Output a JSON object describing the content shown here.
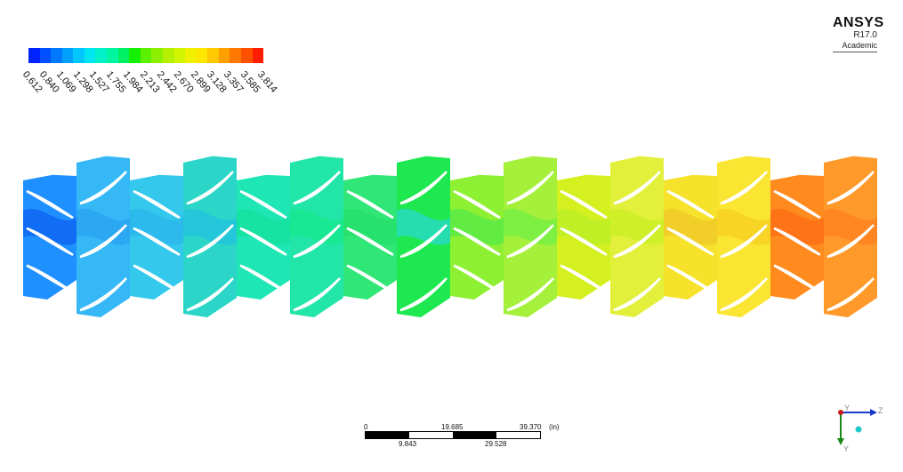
{
  "legend": {
    "labels": [
      "0.612",
      "0.840",
      "1.069",
      "1.298",
      "1.527",
      "1.755",
      "1.984",
      "2.213",
      "2.442",
      "2.670",
      "2.899",
      "3.128",
      "3.357",
      "3.585",
      "3.814"
    ],
    "colors": [
      "#0023ff",
      "#0050ff",
      "#0078ff",
      "#00a0ff",
      "#00c8ff",
      "#00e6f0",
      "#00f0c8",
      "#00f5a0",
      "#00f064",
      "#14f000",
      "#5af000",
      "#8cf000",
      "#b4f000",
      "#d2f500",
      "#f0f000",
      "#ffe600",
      "#ffc800",
      "#ffa000",
      "#ff7800",
      "#ff5000",
      "#ff1e00"
    ]
  },
  "logo": {
    "brand": "ANSYS",
    "version": "R17.0",
    "edition": "Academic"
  },
  "scale_bar": {
    "top_labels": [
      "0",
      "19.685",
      "39.370",
      "(in)"
    ],
    "bottom_labels": [
      "9.843",
      "29.528"
    ]
  },
  "triad": {
    "y_label": "Y",
    "z_label": "Z",
    "y_color": "#1a8a1a",
    "z_color": "#1a3acc",
    "origin_color": "#cc1a1a"
  },
  "blade_rows": [
    {
      "fill": "#1e90ff",
      "accent": "#0a5ef0"
    },
    {
      "fill": "#35b8f5",
      "accent": "#2aa0f0"
    },
    {
      "fill": "#33c8ec",
      "accent": "#2ab4ee"
    },
    {
      "fill": "#2bd6c8",
      "accent": "#22c0e0"
    },
    {
      "fill": "#1ee6b4",
      "accent": "#12e09a"
    },
    {
      "fill": "#22e6a8",
      "accent": "#14e88a"
    },
    {
      "fill": "#2fe676",
      "accent": "#22e06a"
    },
    {
      "fill": "#1ee850",
      "accent": "#2ad8d8"
    },
    {
      "fill": "#8ef032",
      "accent": "#4ee84a"
    },
    {
      "fill": "#a4f03a",
      "accent": "#6ef044"
    },
    {
      "fill": "#d4f01e",
      "accent": "#b8ee2a"
    },
    {
      "fill": "#e2f03c",
      "accent": "#c8ee20"
    },
    {
      "fill": "#f6e22a",
      "accent": "#f0c828"
    },
    {
      "fill": "#fae632",
      "accent": "#f5cc20"
    },
    {
      "fill": "#ff8a1e",
      "accent": "#ff6a14"
    },
    {
      "fill": "#ff9a2a",
      "accent": "#ff7e1e"
    }
  ]
}
